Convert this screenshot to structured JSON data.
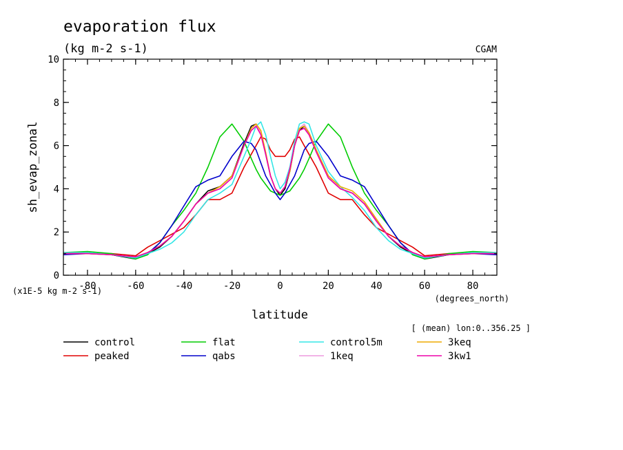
{
  "chart_data": {
    "type": "line",
    "title": "evaporation flux",
    "units": "(kg m-2 s-1)",
    "source": "CGAM",
    "ylabel": "sh_evap_zonal",
    "xlabel": "latitude",
    "x_units": "(degrees_north)",
    "y_scale_note": "(x1E-5 kg m-2 s-1)",
    "subtitle": "[ (mean) lon:0..356.25 ]",
    "xlim": [
      -90,
      90
    ],
    "ylim": [
      0,
      10
    ],
    "x_ticks": [
      -80,
      -60,
      -40,
      -20,
      0,
      20,
      40,
      60,
      80
    ],
    "y_ticks": [
      0,
      2,
      4,
      6,
      8,
      10
    ],
    "x": [
      -90,
      -80,
      -70,
      -60,
      -55,
      -50,
      -45,
      -40,
      -35,
      -30,
      -25,
      -20,
      -15,
      -12,
      -10,
      -8,
      -6,
      -4,
      -2,
      0,
      2,
      4,
      6,
      8,
      10,
      12,
      15,
      20,
      25,
      30,
      35,
      40,
      45,
      50,
      55,
      60,
      70,
      80,
      90
    ],
    "series": [
      {
        "name": "control",
        "color": "#000000",
        "values": [
          1.0,
          1.05,
          0.95,
          0.75,
          1.0,
          1.3,
          1.8,
          2.5,
          3.3,
          3.9,
          4.1,
          4.6,
          6.1,
          6.9,
          7.0,
          6.6,
          5.6,
          4.6,
          4.0,
          3.7,
          4.0,
          4.8,
          6.0,
          6.7,
          6.9,
          6.6,
          5.8,
          4.6,
          4.0,
          3.8,
          3.3,
          2.5,
          1.8,
          1.3,
          1.0,
          0.75,
          0.95,
          1.05,
          1.0
        ]
      },
      {
        "name": "peaked",
        "color": "#e00000",
        "values": [
          1.0,
          1.0,
          1.0,
          0.9,
          1.3,
          1.6,
          1.9,
          2.2,
          2.8,
          3.5,
          3.5,
          3.8,
          5.0,
          5.6,
          6.0,
          6.4,
          6.3,
          5.8,
          5.5,
          5.5,
          5.5,
          5.8,
          6.3,
          6.4,
          6.0,
          5.6,
          5.0,
          3.8,
          3.5,
          3.5,
          2.8,
          2.2,
          1.9,
          1.6,
          1.3,
          0.9,
          1.0,
          1.0,
          1.0
        ]
      },
      {
        "name": "flat",
        "color": "#00cc00",
        "values": [
          1.05,
          1.1,
          1.0,
          0.75,
          0.95,
          1.5,
          2.3,
          3.0,
          3.8,
          5.0,
          6.4,
          7.0,
          6.2,
          5.4,
          4.9,
          4.5,
          4.2,
          3.9,
          3.8,
          3.7,
          3.8,
          3.9,
          4.2,
          4.5,
          4.9,
          5.4,
          6.2,
          7.0,
          6.4,
          5.0,
          3.8,
          3.0,
          2.3,
          1.5,
          0.95,
          0.75,
          1.0,
          1.1,
          1.05
        ]
      },
      {
        "name": "qabs",
        "color": "#0000cc",
        "values": [
          0.95,
          1.0,
          0.95,
          0.8,
          1.0,
          1.5,
          2.3,
          3.2,
          4.1,
          4.4,
          4.6,
          5.5,
          6.2,
          6.1,
          5.8,
          5.2,
          4.6,
          4.2,
          3.8,
          3.5,
          3.8,
          4.2,
          4.6,
          5.2,
          5.8,
          6.1,
          6.2,
          5.5,
          4.6,
          4.4,
          4.1,
          3.2,
          2.3,
          1.5,
          1.0,
          0.8,
          0.95,
          1.0,
          0.95
        ]
      },
      {
        "name": "control5m",
        "color": "#33e6e6",
        "values": [
          1.05,
          1.05,
          0.95,
          0.8,
          1.0,
          1.2,
          1.5,
          2.0,
          2.8,
          3.5,
          3.8,
          4.2,
          5.5,
          6.3,
          6.9,
          7.1,
          6.5,
          5.5,
          4.6,
          4.0,
          4.3,
          5.0,
          6.2,
          7.0,
          7.1,
          7.0,
          6.0,
          4.8,
          4.1,
          3.6,
          3.0,
          2.2,
          1.6,
          1.2,
          1.0,
          0.8,
          0.95,
          1.05,
          1.05
        ]
      },
      {
        "name": "1keq",
        "color": "#ee99dd",
        "values": [
          1.0,
          1.0,
          0.95,
          0.85,
          1.05,
          1.35,
          1.8,
          2.5,
          3.3,
          3.8,
          4.0,
          4.5,
          6.0,
          6.8,
          7.0,
          6.6,
          5.6,
          4.6,
          4.0,
          3.8,
          4.1,
          4.9,
          6.0,
          6.8,
          7.0,
          6.6,
          5.8,
          4.6,
          4.0,
          3.8,
          3.3,
          2.5,
          1.8,
          1.35,
          1.05,
          0.85,
          0.95,
          1.0,
          1.0
        ]
      },
      {
        "name": "3keq",
        "color": "#eeaa00",
        "values": [
          1.0,
          1.0,
          0.95,
          0.85,
          1.05,
          1.35,
          1.8,
          2.5,
          3.3,
          3.8,
          4.1,
          4.6,
          6.0,
          6.8,
          7.0,
          6.7,
          5.7,
          4.6,
          4.0,
          3.8,
          4.1,
          4.8,
          6.0,
          6.8,
          6.9,
          6.6,
          5.8,
          4.6,
          4.1,
          3.9,
          3.4,
          2.6,
          1.8,
          1.35,
          1.05,
          0.85,
          0.95,
          1.0,
          1.0
        ]
      },
      {
        "name": "3kw1",
        "color": "#ee00aa",
        "values": [
          1.0,
          1.0,
          0.95,
          0.85,
          1.05,
          1.35,
          1.8,
          2.5,
          3.3,
          3.8,
          4.0,
          4.5,
          6.0,
          6.7,
          6.9,
          6.5,
          5.6,
          4.6,
          4.0,
          3.8,
          4.1,
          4.9,
          6.0,
          6.7,
          6.8,
          6.5,
          5.7,
          4.5,
          4.0,
          3.8,
          3.3,
          2.5,
          1.8,
          1.35,
          1.05,
          0.85,
          0.95,
          1.0,
          1.0
        ]
      }
    ]
  }
}
